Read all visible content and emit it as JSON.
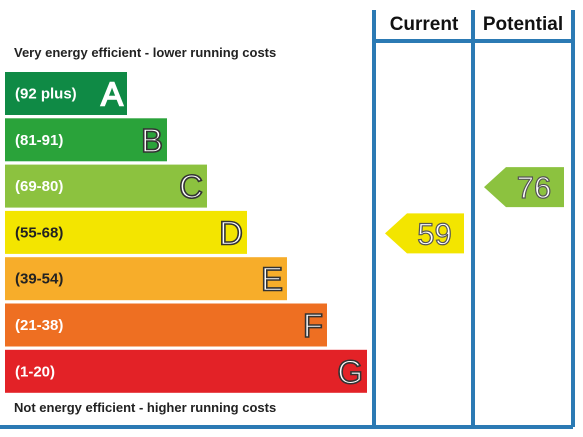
{
  "header": {
    "current_label": "Current",
    "potential_label": "Potential"
  },
  "top_note": "Very energy efficient - lower running costs",
  "bottom_note": "Not energy efficient - higher running costs",
  "colors": {
    "frame": "#2b7ab4",
    "A": "#0f8a45",
    "B": "#2aa33a",
    "C": "#8cc23f",
    "D": "#f3e500",
    "E": "#f7ad2a",
    "F": "#ee6f22",
    "G": "#e32227"
  },
  "chart_data": {
    "type": "bar",
    "categories": [
      "A",
      "B",
      "C",
      "D",
      "E",
      "F",
      "G"
    ],
    "bands": [
      {
        "letter": "A",
        "range": "(92 plus)",
        "min": 92,
        "max": 100
      },
      {
        "letter": "B",
        "range": "(81-91)",
        "min": 81,
        "max": 91
      },
      {
        "letter": "C",
        "range": "(69-80)",
        "min": 69,
        "max": 80
      },
      {
        "letter": "D",
        "range": "(55-68)",
        "min": 55,
        "max": 68
      },
      {
        "letter": "E",
        "range": "(39-54)",
        "min": 39,
        "max": 54
      },
      {
        "letter": "F",
        "range": "(21-38)",
        "min": 21,
        "max": 38
      },
      {
        "letter": "G",
        "range": "(1-20)",
        "min": 1,
        "max": 20
      }
    ],
    "series": [
      {
        "name": "Current",
        "value": 59,
        "band": "D"
      },
      {
        "name": "Potential",
        "value": 76,
        "band": "C"
      }
    ],
    "title": ""
  }
}
